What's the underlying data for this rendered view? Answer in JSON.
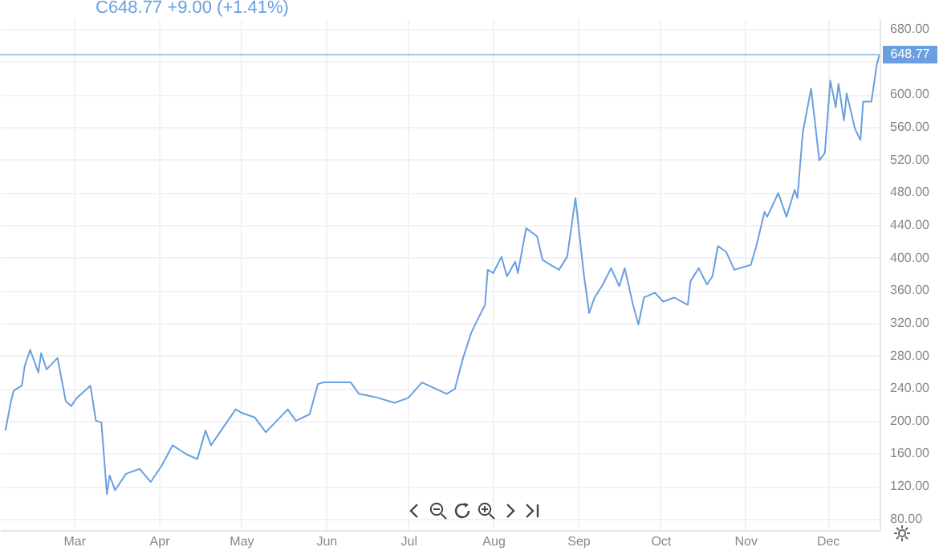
{
  "chart_data": {
    "type": "line",
    "title": "C648.77 +9.00 (+1.41%)",
    "x": [
      "--02-05",
      "--02-07",
      "--02-08",
      "--02-11",
      "--02-12",
      "--02-14",
      "--02-17",
      "--02-18",
      "--02-20",
      "--02-24",
      "--02-27",
      "--02-29",
      "--03-02",
      "--03-07",
      "--03-09",
      "--03-11",
      "--03-12",
      "--03-13",
      "--03-14",
      "--03-16",
      "--03-20",
      "--03-25",
      "--03-29",
      "--04-02",
      "--04-06",
      "--04-11",
      "--04-15",
      "--04-18",
      "--04-20",
      "--04-29",
      "--05-01",
      "--05-06",
      "--05-10",
      "--05-14",
      "--05-18",
      "--05-21",
      "--05-26",
      "--05-29",
      "--05-31",
      "--06-10",
      "--06-13",
      "--06-19",
      "--06-26",
      "--07-01",
      "--07-06",
      "--07-15",
      "--07-18",
      "--07-21",
      "--07-24",
      "--07-26",
      "--07-29",
      "--07-30",
      "--08-01",
      "--08-04",
      "--08-06",
      "--08-09",
      "--08-10",
      "--08-13",
      "--08-17",
      "--08-19",
      "--08-22",
      "--08-25",
      "--08-28",
      "--08-31",
      "--09-03",
      "--09-05",
      "--09-07",
      "--09-10",
      "--09-13",
      "--09-16",
      "--09-18",
      "--09-21",
      "--09-23",
      "--09-25",
      "--09-29",
      "--10-02",
      "--10-06",
      "--10-11",
      "--10-12",
      "--10-15",
      "--10-18",
      "--10-20",
      "--10-22",
      "--10-25",
      "--10-28",
      "--11-03",
      "--11-05",
      "--11-08",
      "--11-09",
      "--11-13",
      "--11-16",
      "--11-19",
      "--11-20",
      "--11-22",
      "--11-25",
      "--11-28",
      "--11-30",
      "--12-02",
      "--12-04",
      "--12-05",
      "--12-07",
      "--12-08",
      "--12-11",
      "--12-13",
      "--12-14",
      "--12-17",
      "--12-19",
      "--12-20"
    ],
    "series": [
      {
        "color": "#6a9fe0",
        "values": [
          188,
          224,
          237,
          243,
          267,
          287,
          259,
          283,
          263,
          277,
          224,
          218,
          228,
          243,
          200,
          198,
          155,
          110,
          133,
          115,
          135,
          141,
          125,
          145,
          170,
          159,
          153,
          188,
          170,
          214,
          210,
          204,
          186,
          200,
          214,
          200,
          208,
          245,
          247,
          247,
          233,
          229,
          222,
          228,
          247,
          233,
          239,
          277,
          308,
          322,
          342,
          385,
          381,
          401,
          377,
          395,
          381,
          436,
          426,
          397,
          391,
          385,
          401,
          473,
          381,
          332,
          351,
          367,
          387,
          365,
          387,
          342,
          318,
          351,
          357,
          346,
          351,
          342,
          371,
          387,
          367,
          377,
          414,
          407,
          385,
          391,
          414,
          456,
          450,
          479,
          450,
          483,
          473,
          554,
          607,
          519,
          528,
          617,
          584,
          613,
          568,
          601,
          558,
          544,
          591,
          591,
          637,
          648.77
        ]
      }
    ],
    "xlim": [
      "--02-03",
      "--12-20"
    ],
    "xticks": [
      {
        "value": "--03-01",
        "label": "Mar"
      },
      {
        "value": "--04-01",
        "label": "Apr"
      },
      {
        "value": "--05-01",
        "label": "May"
      },
      {
        "value": "--06-01",
        "label": "Jun"
      },
      {
        "value": "--07-01",
        "label": "Jul"
      },
      {
        "value": "--08-01",
        "label": "Aug"
      },
      {
        "value": "--09-01",
        "label": "Sep"
      },
      {
        "value": "--10-01",
        "label": "Oct"
      },
      {
        "value": "--11-01",
        "label": "Nov"
      },
      {
        "value": "--12-01",
        "label": "Dec"
      }
    ],
    "ylim": [
      66,
      692
    ],
    "yticks": [
      {
        "value": 80,
        "label": "80.00"
      },
      {
        "value": 120,
        "label": "120.00"
      },
      {
        "value": 160,
        "label": "160.00"
      },
      {
        "value": 200,
        "label": "200.00"
      },
      {
        "value": 240,
        "label": "240.00"
      },
      {
        "value": 280,
        "label": "280.00"
      },
      {
        "value": 320,
        "label": "320.00"
      },
      {
        "value": 360,
        "label": "360.00"
      },
      {
        "value": 400,
        "label": "400.00"
      },
      {
        "value": 440,
        "label": "440.00"
      },
      {
        "value": 480,
        "label": "480.00"
      },
      {
        "value": 520,
        "label": "520.00"
      },
      {
        "value": 560,
        "label": "560.00"
      },
      {
        "value": 600,
        "label": "600.00"
      },
      {
        "value": 640,
        "label": null
      },
      {
        "value": 680,
        "label": "680.00"
      }
    ],
    "ref_lines": [
      {
        "axis": "y",
        "value": 648.77,
        "label": "648.77",
        "color": "#6a9fe0"
      }
    ],
    "grid": true,
    "marker": "none",
    "line_style": "solid"
  }
}
